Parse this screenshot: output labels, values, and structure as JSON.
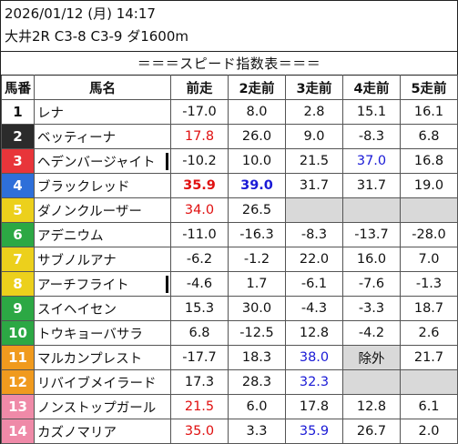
{
  "header": {
    "datetime": "2026/01/12 (月) 14:17",
    "race": "大井2R C3-8 C3-9 ダ1600m",
    "title": "＝＝＝スピード指数表＝＝＝"
  },
  "columns": [
    "馬番",
    "馬名",
    "前走",
    "2走前",
    "3走前",
    "4走前",
    "5走前"
  ],
  "colors": {
    "red_value": "#e01010",
    "blue_value": "#1a1ad6",
    "missing_cell": "#d9d9d9"
  },
  "rows": [
    {
      "num": "1",
      "name": "レナ",
      "mark": false,
      "cells": [
        {
          "v": "-17.0"
        },
        {
          "v": "8.0"
        },
        {
          "v": "2.8"
        },
        {
          "v": "15.1"
        },
        {
          "v": "16.1"
        }
      ]
    },
    {
      "num": "2",
      "name": "ベッティーナ",
      "mark": false,
      "cells": [
        {
          "v": "17.8",
          "c": "red"
        },
        {
          "v": "26.0"
        },
        {
          "v": "9.0"
        },
        {
          "v": "-8.3"
        },
        {
          "v": "6.8"
        }
      ]
    },
    {
      "num": "3",
      "name": "ヘデンバージャイト",
      "mark": true,
      "cells": [
        {
          "v": "-10.2"
        },
        {
          "v": "10.0"
        },
        {
          "v": "21.5"
        },
        {
          "v": "37.0",
          "c": "blue"
        },
        {
          "v": "16.8"
        }
      ]
    },
    {
      "num": "4",
      "name": "ブラックレッド",
      "mark": false,
      "cells": [
        {
          "v": "35.9",
          "c": "red",
          "b": true
        },
        {
          "v": "39.0",
          "c": "blue",
          "b": true
        },
        {
          "v": "31.7"
        },
        {
          "v": "31.7"
        },
        {
          "v": "19.0"
        }
      ]
    },
    {
      "num": "5",
      "name": "ダノンクルーザー",
      "mark": false,
      "cells": [
        {
          "v": "34.0",
          "c": "red"
        },
        {
          "v": "26.5"
        },
        {
          "v": "",
          "g": true
        },
        {
          "v": "",
          "g": true
        },
        {
          "v": "",
          "g": true
        }
      ]
    },
    {
      "num": "6",
      "name": "アデニウム",
      "mark": false,
      "cells": [
        {
          "v": "-11.0"
        },
        {
          "v": "-16.3"
        },
        {
          "v": "-8.3"
        },
        {
          "v": "-13.7"
        },
        {
          "v": "-28.0"
        }
      ]
    },
    {
      "num": "7",
      "name": "サブノルアナ",
      "mark": false,
      "cells": [
        {
          "v": "-6.2"
        },
        {
          "v": "-1.2"
        },
        {
          "v": "22.0"
        },
        {
          "v": "16.0"
        },
        {
          "v": "7.0"
        }
      ]
    },
    {
      "num": "8",
      "name": "アーチフライト",
      "mark": true,
      "cells": [
        {
          "v": "-4.6"
        },
        {
          "v": "1.7"
        },
        {
          "v": "-6.1"
        },
        {
          "v": "-7.6"
        },
        {
          "v": "-1.3"
        }
      ]
    },
    {
      "num": "9",
      "name": "スイヘイセン",
      "mark": false,
      "cells": [
        {
          "v": "15.3"
        },
        {
          "v": "30.0"
        },
        {
          "v": "-4.3"
        },
        {
          "v": "-3.3"
        },
        {
          "v": "18.7"
        }
      ]
    },
    {
      "num": "10",
      "name": "トウキョーバサラ",
      "mark": false,
      "cells": [
        {
          "v": "6.8"
        },
        {
          "v": "-12.5"
        },
        {
          "v": "12.8"
        },
        {
          "v": "-4.2"
        },
        {
          "v": "2.6"
        }
      ]
    },
    {
      "num": "11",
      "name": "マルカンプレスト",
      "mark": false,
      "cells": [
        {
          "v": "-17.7"
        },
        {
          "v": "18.3"
        },
        {
          "v": "38.0",
          "c": "blue"
        },
        {
          "v": "除外",
          "g": true
        },
        {
          "v": "21.7"
        }
      ]
    },
    {
      "num": "12",
      "name": "リバイブメイラード",
      "mark": false,
      "cells": [
        {
          "v": "17.3"
        },
        {
          "v": "28.3"
        },
        {
          "v": "32.3",
          "c": "blue"
        },
        {
          "v": "",
          "g": true
        },
        {
          "v": "",
          "g": true
        }
      ]
    },
    {
      "num": "13",
      "name": "ノンストップガール",
      "mark": false,
      "cells": [
        {
          "v": "21.5",
          "c": "red"
        },
        {
          "v": "6.0"
        },
        {
          "v": "17.8"
        },
        {
          "v": "12.8"
        },
        {
          "v": "6.1"
        }
      ]
    },
    {
      "num": "14",
      "name": "カズノマリア",
      "mark": false,
      "cells": [
        {
          "v": "35.0",
          "c": "red"
        },
        {
          "v": "3.3"
        },
        {
          "v": "35.9",
          "c": "blue"
        },
        {
          "v": "26.7"
        },
        {
          "v": "2.0"
        }
      ]
    }
  ]
}
